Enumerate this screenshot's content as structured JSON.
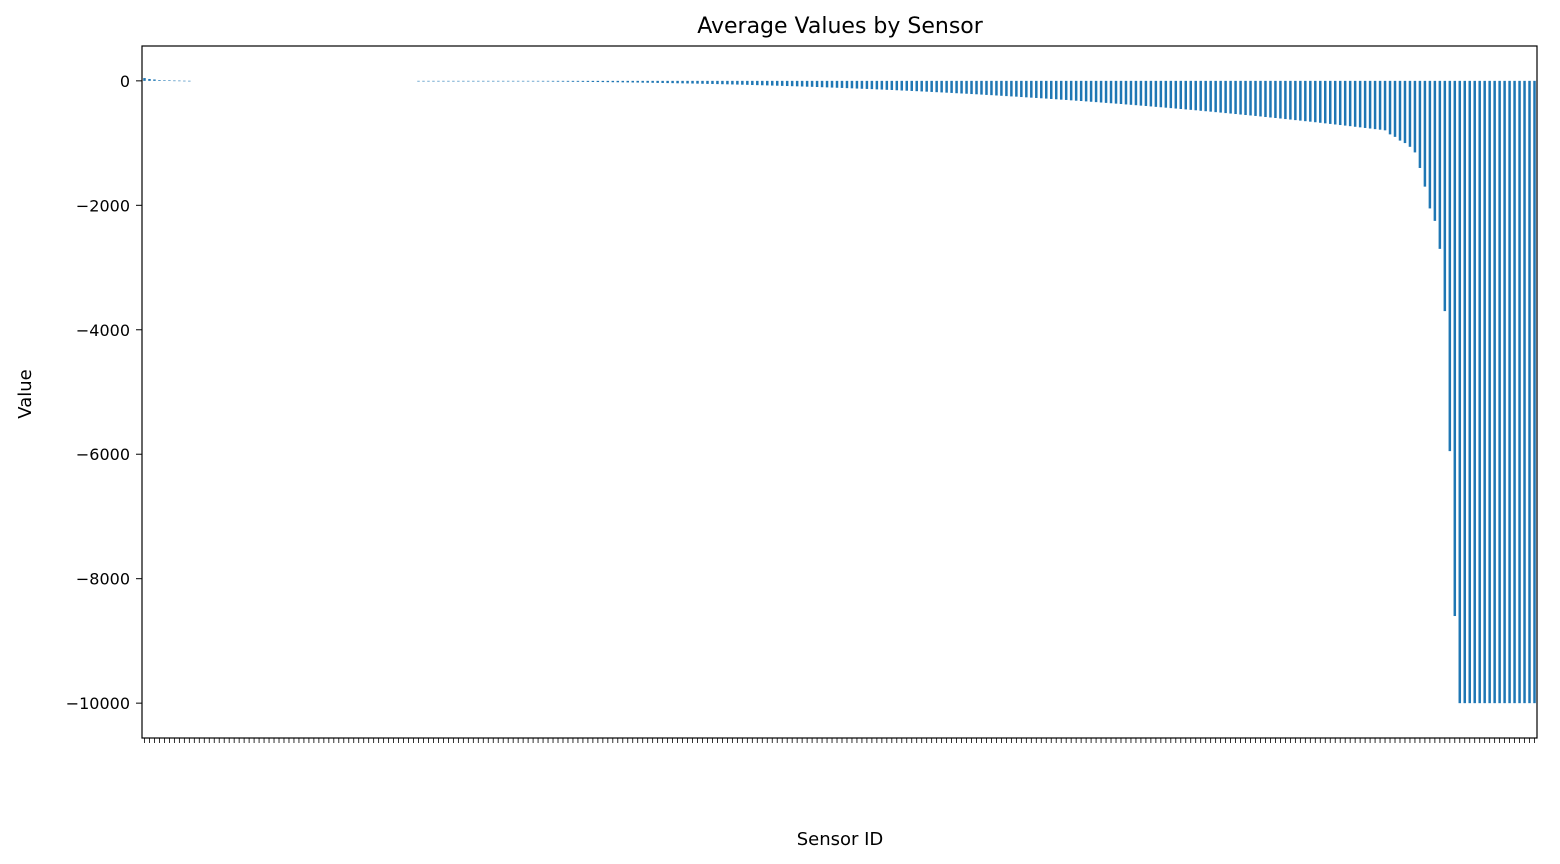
{
  "chart_data": {
    "type": "bar",
    "title": "Average Values by Sensor",
    "xlabel": "Sensor ID",
    "ylabel": "Value",
    "ylim": [
      -10560,
      560
    ],
    "yticks": [
      0,
      -2000,
      -4000,
      -6000,
      -8000,
      -10000
    ],
    "ytick_labels": [
      "0",
      "−2000",
      "−4000",
      "−6000",
      "−8000",
      "−10000"
    ],
    "bar_color": "#1f77b4",
    "grid": false,
    "legend": "none",
    "category_count": 280,
    "categories": [],
    "values": []
  }
}
